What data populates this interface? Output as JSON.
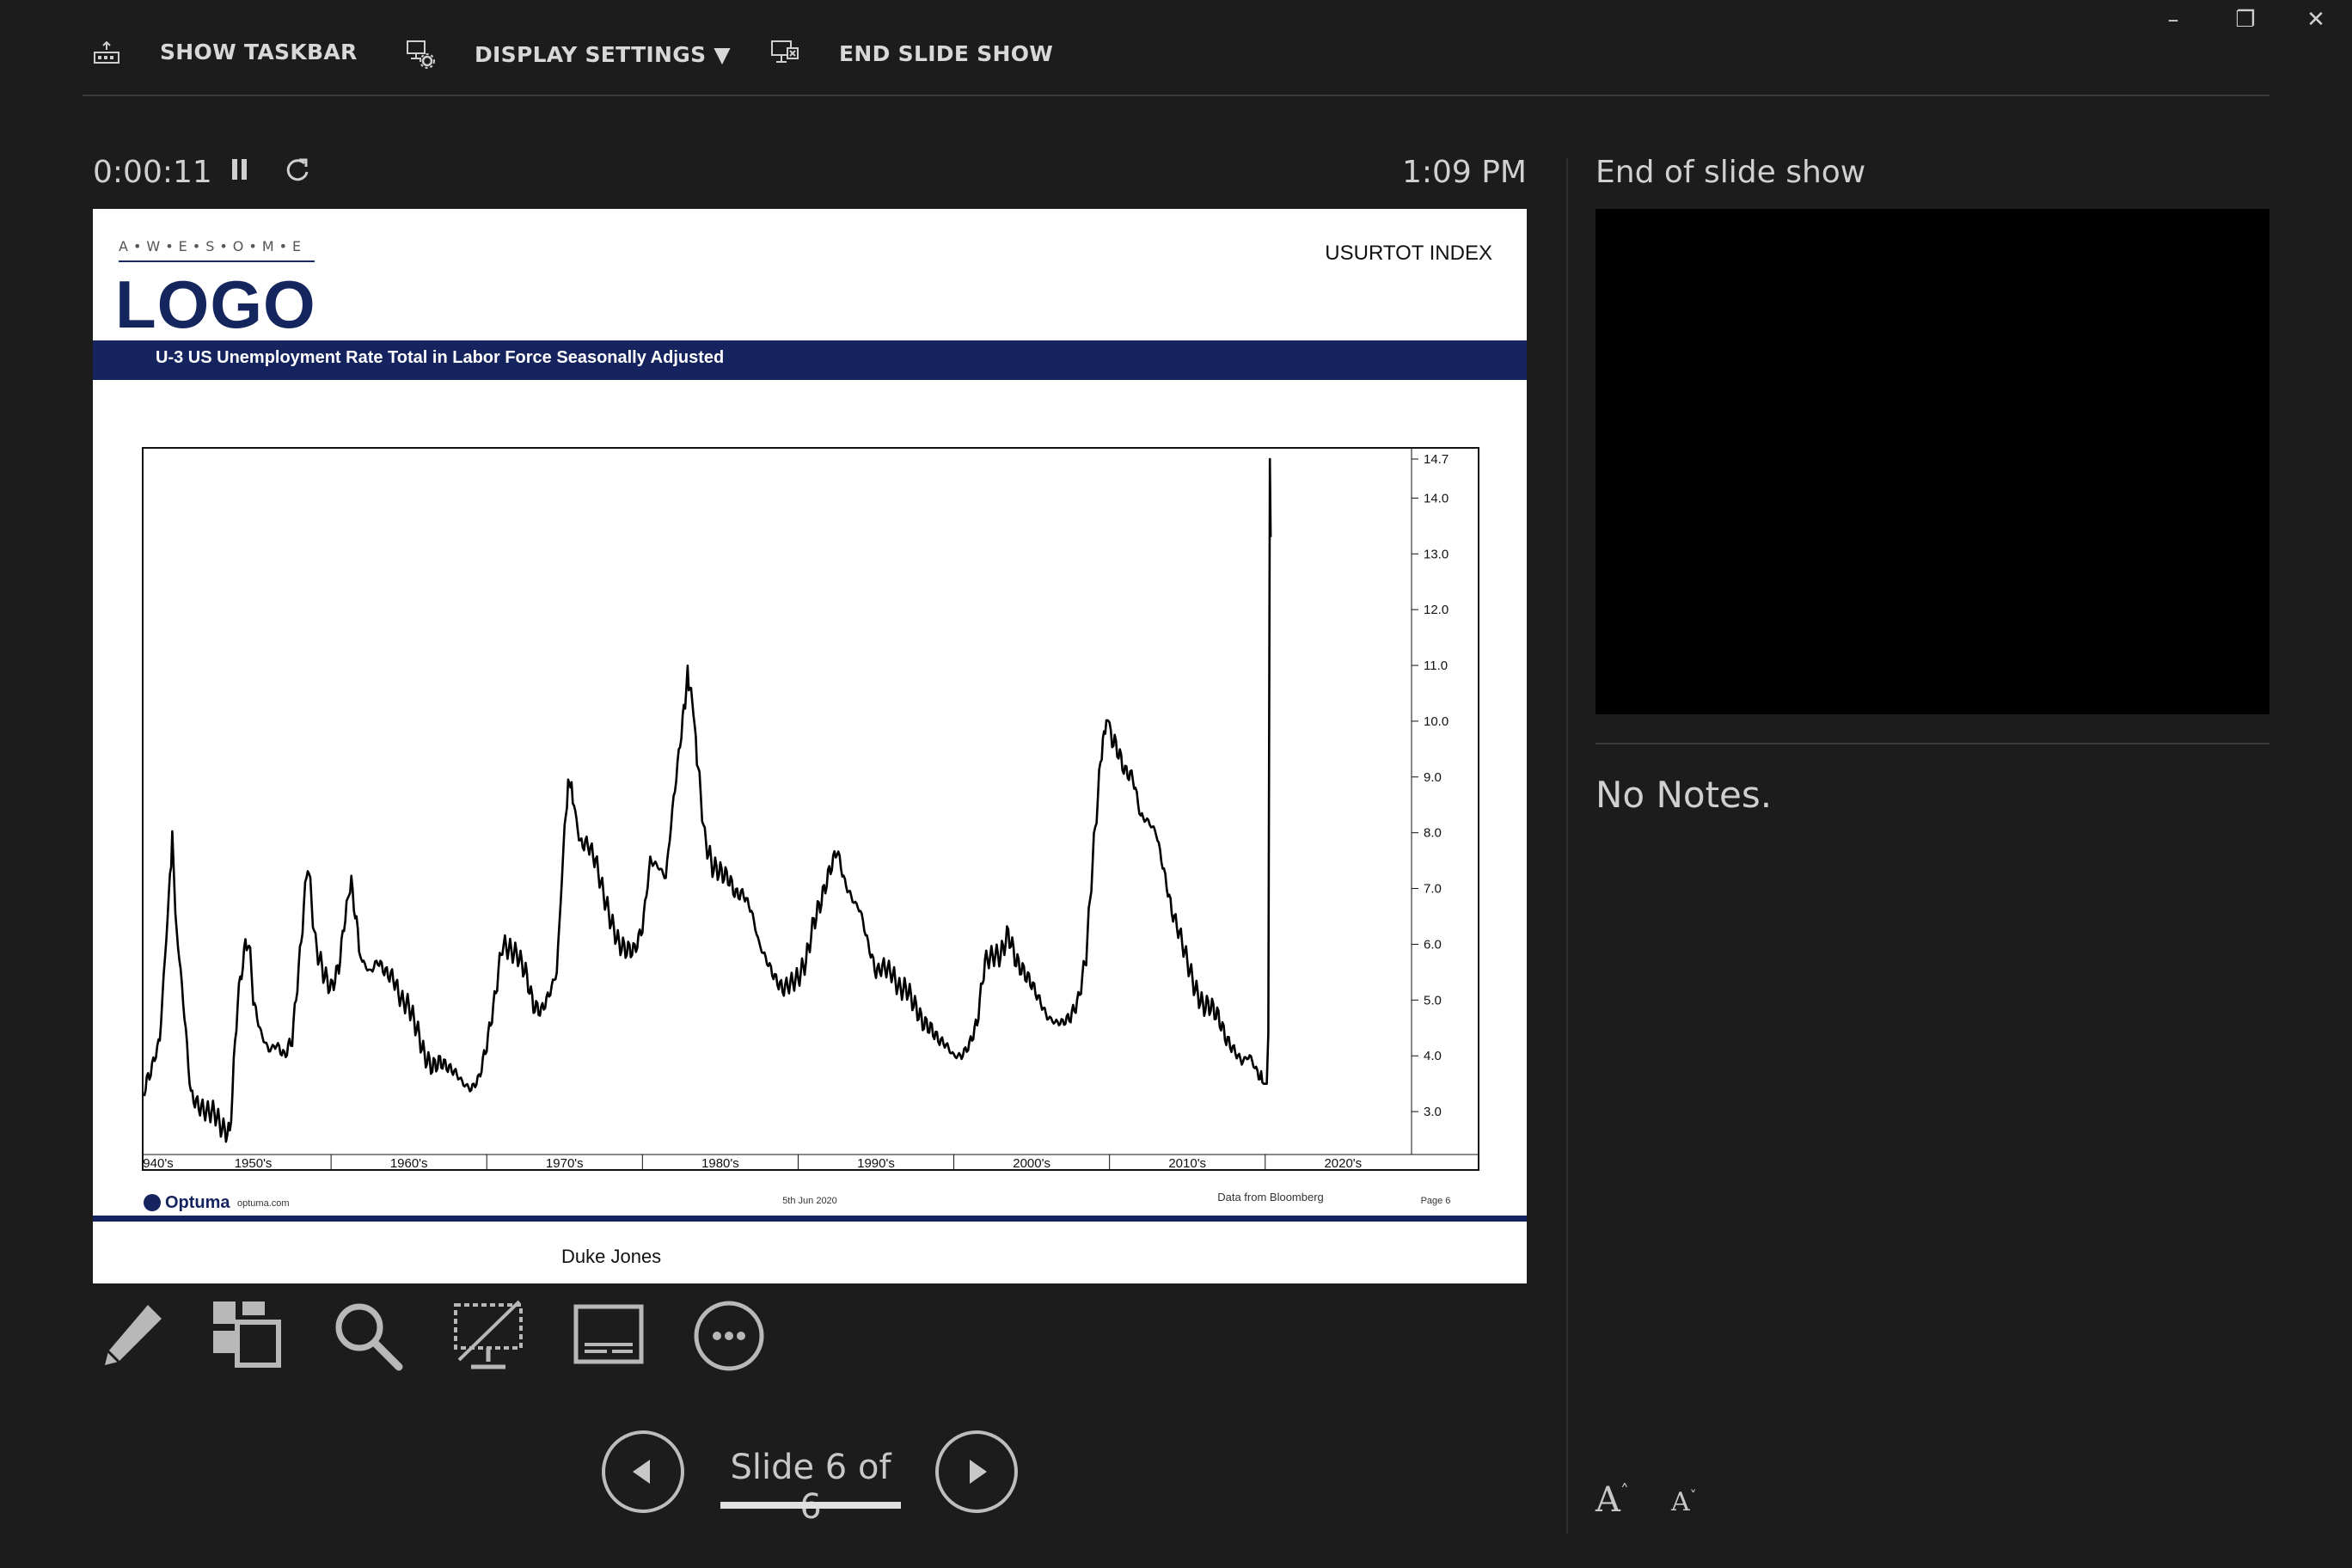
{
  "window_controls": {
    "minimize": "–",
    "restore": "❐",
    "close": "✕"
  },
  "toolbar": {
    "show_taskbar": "SHOW TASKBAR",
    "display_settings": "DISPLAY SETTINGS ▼",
    "end_slide_show": "END SLIDE SHOW"
  },
  "presenter": {
    "timer": "0:00:11",
    "clock": "1:09 PM",
    "slide_counter": "Slide 6 of 6",
    "next_slide_label": "End of slide show",
    "notes": "No Notes."
  },
  "slide": {
    "logo_small": "A•W•E•S•O•M•E",
    "logo_big": "LOGO",
    "index_label": "USURTOT INDEX",
    "title": "U-3 US Unemployment Rate Total in Labor Force Seasonally Adjusted",
    "author": "Duke Jones",
    "footer": {
      "brand": "Optuma",
      "brand_url": "optuma.com",
      "date": "5th Jun 2020",
      "source": "Data from Bloomberg",
      "page": "Page 6"
    }
  },
  "icons": [
    "pen-icon",
    "all-slides-icon",
    "zoom-icon",
    "black-screen-icon",
    "subtitles-icon",
    "more-options-icon",
    "previous-slide-icon",
    "next-slide-icon"
  ],
  "chart_data": {
    "type": "line",
    "title": "U-3 US Unemployment Rate Total in Labor Force Seasonally Adjusted",
    "xlabel": "",
    "ylabel": "",
    "ylim": [
      2.2,
      14.9
    ],
    "yticks": [
      "3.0",
      "4.0",
      "5.0",
      "6.0",
      "7.0",
      "8.0",
      "9.0",
      "10.0",
      "11.0",
      "12.0",
      "13.0",
      "14.0",
      "14.7"
    ],
    "xtick_labels": [
      "940's",
      "1950's",
      "1960's",
      "1970's",
      "1980's",
      "1990's",
      "2000's",
      "2010's",
      "2020's"
    ],
    "series": [
      {
        "values": [
          [
            1948.0,
            3.4
          ],
          [
            1948.5,
            3.8
          ],
          [
            1949.0,
            4.3
          ],
          [
            1949.5,
            6.5
          ],
          [
            1949.8,
            7.9
          ],
          [
            1950.0,
            6.5
          ],
          [
            1950.5,
            5.0
          ],
          [
            1951.0,
            3.3
          ],
          [
            1951.5,
            3.1
          ],
          [
            1952.0,
            3.0
          ],
          [
            1952.5,
            3.0
          ],
          [
            1953.0,
            2.7
          ],
          [
            1953.5,
            2.6
          ],
          [
            1954.0,
            5.0
          ],
          [
            1954.5,
            6.0
          ],
          [
            1954.8,
            5.9
          ],
          [
            1955.0,
            5.0
          ],
          [
            1955.5,
            4.4
          ],
          [
            1956.0,
            4.1
          ],
          [
            1956.5,
            4.2
          ],
          [
            1957.0,
            4.0
          ],
          [
            1957.5,
            4.3
          ],
          [
            1958.0,
            5.8
          ],
          [
            1958.5,
            7.5
          ],
          [
            1959.0,
            6.0
          ],
          [
            1959.5,
            5.5
          ],
          [
            1960.0,
            5.2
          ],
          [
            1960.5,
            5.6
          ],
          [
            1961.0,
            6.7
          ],
          [
            1961.3,
            7.1
          ],
          [
            1961.8,
            6.0
          ],
          [
            1962.0,
            5.7
          ],
          [
            1962.5,
            5.5
          ],
          [
            1963.0,
            5.7
          ],
          [
            1963.5,
            5.5
          ],
          [
            1964.0,
            5.4
          ],
          [
            1964.5,
            5.0
          ],
          [
            1965.0,
            4.9
          ],
          [
            1965.5,
            4.5
          ],
          [
            1966.0,
            4.0
          ],
          [
            1966.5,
            3.8
          ],
          [
            1967.0,
            3.9
          ],
          [
            1967.5,
            3.8
          ],
          [
            1968.0,
            3.7
          ],
          [
            1968.5,
            3.5
          ],
          [
            1969.0,
            3.4
          ],
          [
            1969.5,
            3.6
          ],
          [
            1970.0,
            4.2
          ],
          [
            1970.5,
            5.0
          ],
          [
            1971.0,
            6.0
          ],
          [
            1971.5,
            5.9
          ],
          [
            1972.0,
            5.8
          ],
          [
            1972.5,
            5.5
          ],
          [
            1973.0,
            4.9
          ],
          [
            1973.5,
            4.8
          ],
          [
            1974.0,
            5.1
          ],
          [
            1974.5,
            5.5
          ],
          [
            1975.0,
            8.1
          ],
          [
            1975.3,
            9.0
          ],
          [
            1975.6,
            8.5
          ],
          [
            1976.0,
            7.8
          ],
          [
            1976.5,
            7.8
          ],
          [
            1977.0,
            7.5
          ],
          [
            1977.5,
            6.9
          ],
          [
            1978.0,
            6.4
          ],
          [
            1978.5,
            6.0
          ],
          [
            1979.0,
            5.9
          ],
          [
            1979.5,
            5.9
          ],
          [
            1980.0,
            6.3
          ],
          [
            1980.5,
            7.5
          ],
          [
            1981.0,
            7.4
          ],
          [
            1981.5,
            7.2
          ],
          [
            1982.0,
            8.6
          ],
          [
            1982.5,
            9.8
          ],
          [
            1982.9,
            10.8
          ],
          [
            1983.2,
            10.4
          ],
          [
            1983.5,
            9.4
          ],
          [
            1984.0,
            7.9
          ],
          [
            1984.5,
            7.4
          ],
          [
            1985.0,
            7.3
          ],
          [
            1985.5,
            7.2
          ],
          [
            1986.0,
            6.9
          ],
          [
            1986.5,
            6.9
          ],
          [
            1987.0,
            6.6
          ],
          [
            1987.5,
            6.0
          ],
          [
            1988.0,
            5.7
          ],
          [
            1988.5,
            5.4
          ],
          [
            1989.0,
            5.2
          ],
          [
            1989.5,
            5.3
          ],
          [
            1990.0,
            5.4
          ],
          [
            1990.5,
            5.7
          ],
          [
            1991.0,
            6.4
          ],
          [
            1991.5,
            6.8
          ],
          [
            1992.0,
            7.3
          ],
          [
            1992.5,
            7.7
          ],
          [
            1993.0,
            7.1
          ],
          [
            1993.5,
            6.8
          ],
          [
            1994.0,
            6.6
          ],
          [
            1994.5,
            6.0
          ],
          [
            1995.0,
            5.5
          ],
          [
            1995.5,
            5.6
          ],
          [
            1996.0,
            5.5
          ],
          [
            1996.5,
            5.2
          ],
          [
            1997.0,
            5.2
          ],
          [
            1997.5,
            4.9
          ],
          [
            1998.0,
            4.6
          ],
          [
            1998.5,
            4.5
          ],
          [
            1999.0,
            4.3
          ],
          [
            1999.5,
            4.2
          ],
          [
            2000.0,
            4.0
          ],
          [
            2000.5,
            4.0
          ],
          [
            2001.0,
            4.2
          ],
          [
            2001.5,
            4.6
          ],
          [
            2002.0,
            5.7
          ],
          [
            2002.5,
            5.8
          ],
          [
            2003.0,
            5.8
          ],
          [
            2003.5,
            6.2
          ],
          [
            2004.0,
            5.7
          ],
          [
            2004.5,
            5.5
          ],
          [
            2005.0,
            5.3
          ],
          [
            2005.5,
            5.0
          ],
          [
            2006.0,
            4.7
          ],
          [
            2006.5,
            4.6
          ],
          [
            2007.0,
            4.6
          ],
          [
            2007.5,
            4.7
          ],
          [
            2008.0,
            5.0
          ],
          [
            2008.5,
            5.8
          ],
          [
            2009.0,
            7.8
          ],
          [
            2009.5,
            9.5
          ],
          [
            2009.8,
            10.0
          ],
          [
            2010.0,
            9.8
          ],
          [
            2010.5,
            9.5
          ],
          [
            2011.0,
            9.1
          ],
          [
            2011.5,
            9.0
          ],
          [
            2012.0,
            8.3
          ],
          [
            2012.5,
            8.2
          ],
          [
            2013.0,
            8.0
          ],
          [
            2013.5,
            7.3
          ],
          [
            2014.0,
            6.6
          ],
          [
            2014.5,
            6.2
          ],
          [
            2015.0,
            5.7
          ],
          [
            2015.5,
            5.2
          ],
          [
            2016.0,
            4.9
          ],
          [
            2016.5,
            4.9
          ],
          [
            2017.0,
            4.7
          ],
          [
            2017.5,
            4.3
          ],
          [
            2018.0,
            4.1
          ],
          [
            2018.5,
            3.9
          ],
          [
            2019.0,
            4.0
          ],
          [
            2019.5,
            3.7
          ],
          [
            2019.9,
            3.5
          ],
          [
            2020.1,
            3.5
          ],
          [
            2020.2,
            4.4
          ],
          [
            2020.3,
            14.7
          ],
          [
            2020.35,
            13.3
          ]
        ]
      }
    ]
  }
}
